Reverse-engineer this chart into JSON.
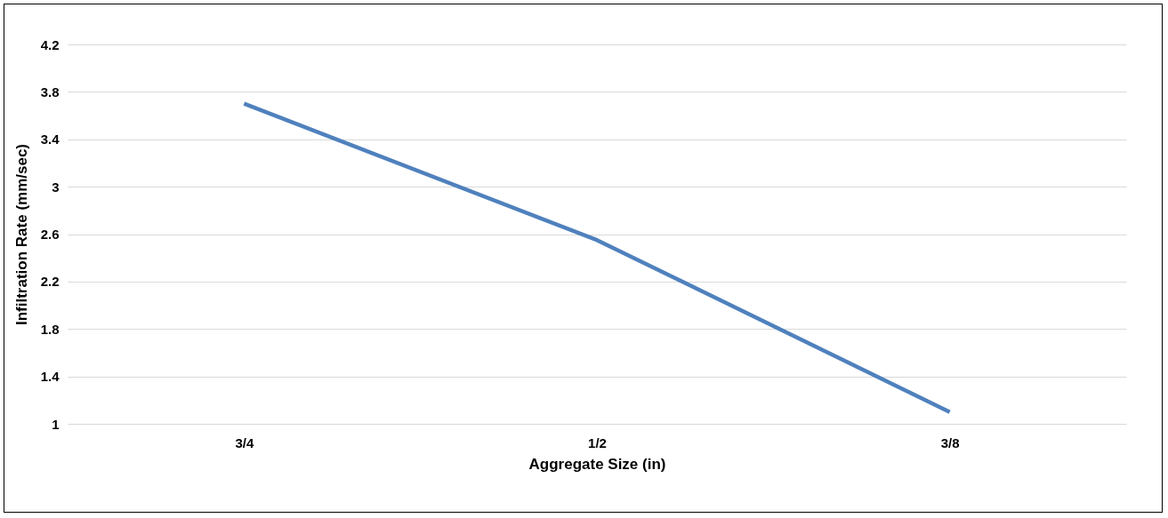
{
  "chart_data": {
    "type": "line",
    "xlabel": "Aggregate Size (in)",
    "ylabel": "Infiltration Rate (mm/sec)",
    "categories": [
      "3/4",
      "1/2",
      "3/8"
    ],
    "series": [
      {
        "color": "#4f81bd",
        "values": [
          3.7,
          2.55,
          1.1
        ]
      }
    ],
    "ylim": [
      1,
      4.2
    ],
    "yticks": [
      1,
      1.4,
      1.8,
      2.2,
      2.6,
      3,
      3.4,
      3.8,
      4.2
    ],
    "grid": "y",
    "marker": "none",
    "line_style": "solid"
  }
}
